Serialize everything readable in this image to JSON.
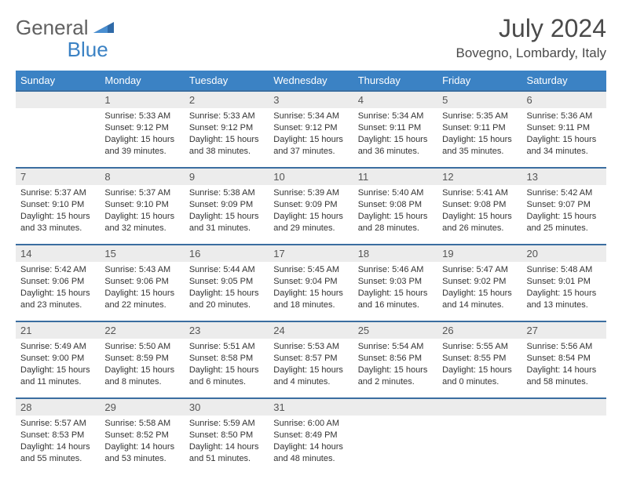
{
  "brand": {
    "part1": "General",
    "part2": "Blue"
  },
  "title": "July 2024",
  "location": "Bovegno, Lombardy, Italy",
  "colors": {
    "header_bg": "#3b82c4",
    "row_border": "#3b6ea0",
    "daynum_bg": "#ececec",
    "text": "#333333"
  },
  "weekdays": [
    "Sunday",
    "Monday",
    "Tuesday",
    "Wednesday",
    "Thursday",
    "Friday",
    "Saturday"
  ],
  "weeks": [
    [
      {
        "n": ""
      },
      {
        "n": "1",
        "sr": "5:33 AM",
        "ss": "9:12 PM",
        "dl": "15 hours and 39 minutes."
      },
      {
        "n": "2",
        "sr": "5:33 AM",
        "ss": "9:12 PM",
        "dl": "15 hours and 38 minutes."
      },
      {
        "n": "3",
        "sr": "5:34 AM",
        "ss": "9:12 PM",
        "dl": "15 hours and 37 minutes."
      },
      {
        "n": "4",
        "sr": "5:34 AM",
        "ss": "9:11 PM",
        "dl": "15 hours and 36 minutes."
      },
      {
        "n": "5",
        "sr": "5:35 AM",
        "ss": "9:11 PM",
        "dl": "15 hours and 35 minutes."
      },
      {
        "n": "6",
        "sr": "5:36 AM",
        "ss": "9:11 PM",
        "dl": "15 hours and 34 minutes."
      }
    ],
    [
      {
        "n": "7",
        "sr": "5:37 AM",
        "ss": "9:10 PM",
        "dl": "15 hours and 33 minutes."
      },
      {
        "n": "8",
        "sr": "5:37 AM",
        "ss": "9:10 PM",
        "dl": "15 hours and 32 minutes."
      },
      {
        "n": "9",
        "sr": "5:38 AM",
        "ss": "9:09 PM",
        "dl": "15 hours and 31 minutes."
      },
      {
        "n": "10",
        "sr": "5:39 AM",
        "ss": "9:09 PM",
        "dl": "15 hours and 29 minutes."
      },
      {
        "n": "11",
        "sr": "5:40 AM",
        "ss": "9:08 PM",
        "dl": "15 hours and 28 minutes."
      },
      {
        "n": "12",
        "sr": "5:41 AM",
        "ss": "9:08 PM",
        "dl": "15 hours and 26 minutes."
      },
      {
        "n": "13",
        "sr": "5:42 AM",
        "ss": "9:07 PM",
        "dl": "15 hours and 25 minutes."
      }
    ],
    [
      {
        "n": "14",
        "sr": "5:42 AM",
        "ss": "9:06 PM",
        "dl": "15 hours and 23 minutes."
      },
      {
        "n": "15",
        "sr": "5:43 AM",
        "ss": "9:06 PM",
        "dl": "15 hours and 22 minutes."
      },
      {
        "n": "16",
        "sr": "5:44 AM",
        "ss": "9:05 PM",
        "dl": "15 hours and 20 minutes."
      },
      {
        "n": "17",
        "sr": "5:45 AM",
        "ss": "9:04 PM",
        "dl": "15 hours and 18 minutes."
      },
      {
        "n": "18",
        "sr": "5:46 AM",
        "ss": "9:03 PM",
        "dl": "15 hours and 16 minutes."
      },
      {
        "n": "19",
        "sr": "5:47 AM",
        "ss": "9:02 PM",
        "dl": "15 hours and 14 minutes."
      },
      {
        "n": "20",
        "sr": "5:48 AM",
        "ss": "9:01 PM",
        "dl": "15 hours and 13 minutes."
      }
    ],
    [
      {
        "n": "21",
        "sr": "5:49 AM",
        "ss": "9:00 PM",
        "dl": "15 hours and 11 minutes."
      },
      {
        "n": "22",
        "sr": "5:50 AM",
        "ss": "8:59 PM",
        "dl": "15 hours and 8 minutes."
      },
      {
        "n": "23",
        "sr": "5:51 AM",
        "ss": "8:58 PM",
        "dl": "15 hours and 6 minutes."
      },
      {
        "n": "24",
        "sr": "5:53 AM",
        "ss": "8:57 PM",
        "dl": "15 hours and 4 minutes."
      },
      {
        "n": "25",
        "sr": "5:54 AM",
        "ss": "8:56 PM",
        "dl": "15 hours and 2 minutes."
      },
      {
        "n": "26",
        "sr": "5:55 AM",
        "ss": "8:55 PM",
        "dl": "15 hours and 0 minutes."
      },
      {
        "n": "27",
        "sr": "5:56 AM",
        "ss": "8:54 PM",
        "dl": "14 hours and 58 minutes."
      }
    ],
    [
      {
        "n": "28",
        "sr": "5:57 AM",
        "ss": "8:53 PM",
        "dl": "14 hours and 55 minutes."
      },
      {
        "n": "29",
        "sr": "5:58 AM",
        "ss": "8:52 PM",
        "dl": "14 hours and 53 minutes."
      },
      {
        "n": "30",
        "sr": "5:59 AM",
        "ss": "8:50 PM",
        "dl": "14 hours and 51 minutes."
      },
      {
        "n": "31",
        "sr": "6:00 AM",
        "ss": "8:49 PM",
        "dl": "14 hours and 48 minutes."
      },
      {
        "n": ""
      },
      {
        "n": ""
      },
      {
        "n": ""
      }
    ]
  ],
  "labels": {
    "sunrise": "Sunrise:",
    "sunset": "Sunset:",
    "daylight": "Daylight:"
  }
}
